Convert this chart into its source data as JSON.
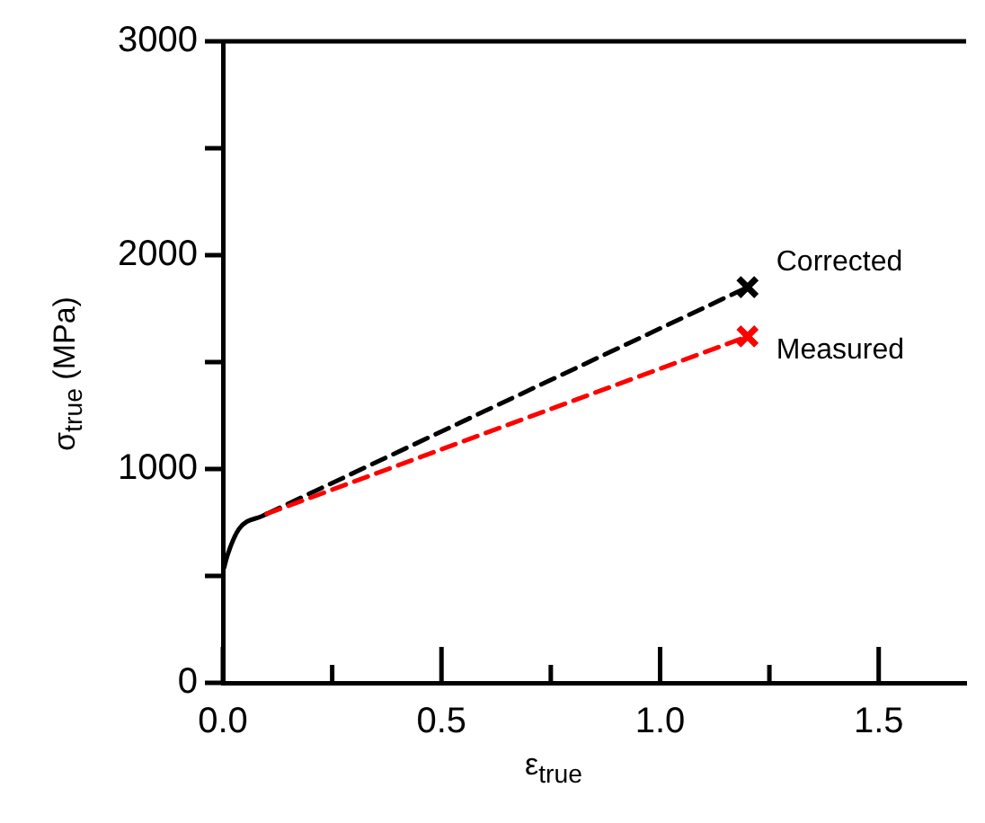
{
  "chart_data": {
    "type": "line",
    "xlabel": "ε$_{true}$",
    "ylabel": "σ$_{true}$ (MPa)",
    "xlim": [
      0,
      1.7
    ],
    "ylim": [
      0,
      3000
    ],
    "xticks": [
      {
        "value": 0,
        "label": "0.0"
      },
      {
        "value": 0.25,
        "label": null
      },
      {
        "value": 0.5,
        "label": "0.5"
      },
      {
        "value": 0.75,
        "label": null
      },
      {
        "value": 1,
        "label": "1.0"
      },
      {
        "value": 1.25,
        "label": null
      },
      {
        "value": 1.5,
        "label": "1.5"
      }
    ],
    "yticks": [
      0,
      {
        "value": 500,
        "label": null
      },
      1000,
      {
        "value": 1500,
        "label": null
      },
      2000,
      {
        "value": 2500,
        "label": null
      },
      3000
    ],
    "grid": false,
    "legend": false,
    "series": [
      {
        "color": "#000000",
        "line_style": "solid",
        "marker": "none",
        "x": [
          0.003,
          0.011,
          0.037,
          0.09,
          0.1
        ],
        "values": [
          540,
          600,
          720,
          780,
          790
        ]
      },
      {
        "color": "#000000",
        "line_style": "dashed",
        "marker": "none",
        "x": [
          0.1,
          1.2
        ],
        "values": [
          790,
          1850
        ]
      },
      {
        "color": "#ff0000",
        "line_style": "dashed",
        "marker": "none",
        "x": [
          0.1,
          1.2
        ],
        "values": [
          790,
          1620
        ]
      },
      {
        "type": "scatter",
        "name": "Corrected",
        "color": "#000000",
        "marker": "cross",
        "x": [
          1.2
        ],
        "values": [
          1850
        ]
      },
      {
        "type": "scatter",
        "name": "Measured",
        "color": "#ff0000",
        "marker": "cross",
        "x": [
          1.2
        ],
        "values": [
          1620
        ]
      }
    ]
  }
}
